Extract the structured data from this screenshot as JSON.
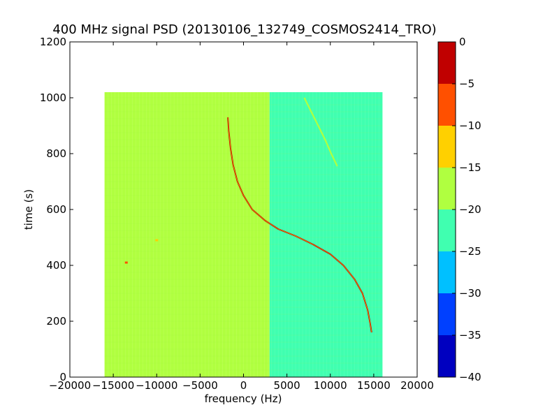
{
  "chart_data": {
    "type": "heatmap",
    "title": "400 MHz signal PSD (20130106_132749_COSMOS2414_TRO)",
    "xlabel": "frequency (Hz)",
    "ylabel": "time (s)",
    "xlim": [
      -20000,
      20000
    ],
    "ylim": [
      0,
      1200
    ],
    "xticks": [
      -20000,
      -15000,
      -10000,
      -5000,
      0,
      5000,
      10000,
      15000,
      20000
    ],
    "yticks": [
      0,
      200,
      400,
      600,
      800,
      1000,
      1200
    ],
    "data_extent": {
      "x": [
        -16000,
        16000
      ],
      "y": [
        0,
        1020
      ]
    },
    "grid": false,
    "colormap": "jet",
    "colorbar": {
      "levels": [
        -40,
        -35,
        -30,
        -25,
        -20,
        -15,
        -10,
        -5,
        0
      ],
      "ticks": [
        -40,
        -35,
        -30,
        -25,
        -20,
        -15,
        -10,
        -5,
        0
      ],
      "colors": [
        "#0000c0",
        "#0040ff",
        "#00c0ff",
        "#40ffb0",
        "#b0ff40",
        "#ffd000",
        "#ff5000",
        "#c00000"
      ]
    },
    "background_regions": [
      {
        "x": [
          -16000,
          3000
        ],
        "level_color": "#b0ff40"
      },
      {
        "x": [
          3000,
          13000
        ],
        "level_color": "#40ffb0"
      },
      {
        "x": [
          13000,
          16000
        ],
        "level_color": "#40ffb0"
      }
    ],
    "series": [
      {
        "points": [
          {
            "x": -1800,
            "y": 930
          },
          {
            "x": -1700,
            "y": 880
          },
          {
            "x": -1500,
            "y": 820
          },
          {
            "x": -1200,
            "y": 760
          },
          {
            "x": -700,
            "y": 700
          },
          {
            "x": 0,
            "y": 650
          },
          {
            "x": 1000,
            "y": 600
          },
          {
            "x": 2500,
            "y": 560
          },
          {
            "x": 4000,
            "y": 530
          },
          {
            "x": 6000,
            "y": 505
          },
          {
            "x": 8000,
            "y": 475
          },
          {
            "x": 10000,
            "y": 440
          },
          {
            "x": 11500,
            "y": 400
          },
          {
            "x": 12800,
            "y": 350
          },
          {
            "x": 13700,
            "y": 300
          },
          {
            "x": 14300,
            "y": 240
          },
          {
            "x": 14600,
            "y": 190
          },
          {
            "x": 14750,
            "y": 160
          }
        ],
        "level_color": "#c00000"
      },
      {
        "points": [
          {
            "x": 7000,
            "y": 1000
          },
          {
            "x": 7800,
            "y": 950
          },
          {
            "x": 8600,
            "y": 900
          },
          {
            "x": 9400,
            "y": 850
          },
          {
            "x": 10100,
            "y": 800
          },
          {
            "x": 10800,
            "y": 755
          }
        ],
        "level_color": "#b0ff40"
      }
    ],
    "annotations": [
      {
        "x": -13500,
        "y": 410,
        "level_color": "#ff5000"
      },
      {
        "x": -10000,
        "y": 490,
        "level_color": "#ffd000"
      }
    ]
  }
}
